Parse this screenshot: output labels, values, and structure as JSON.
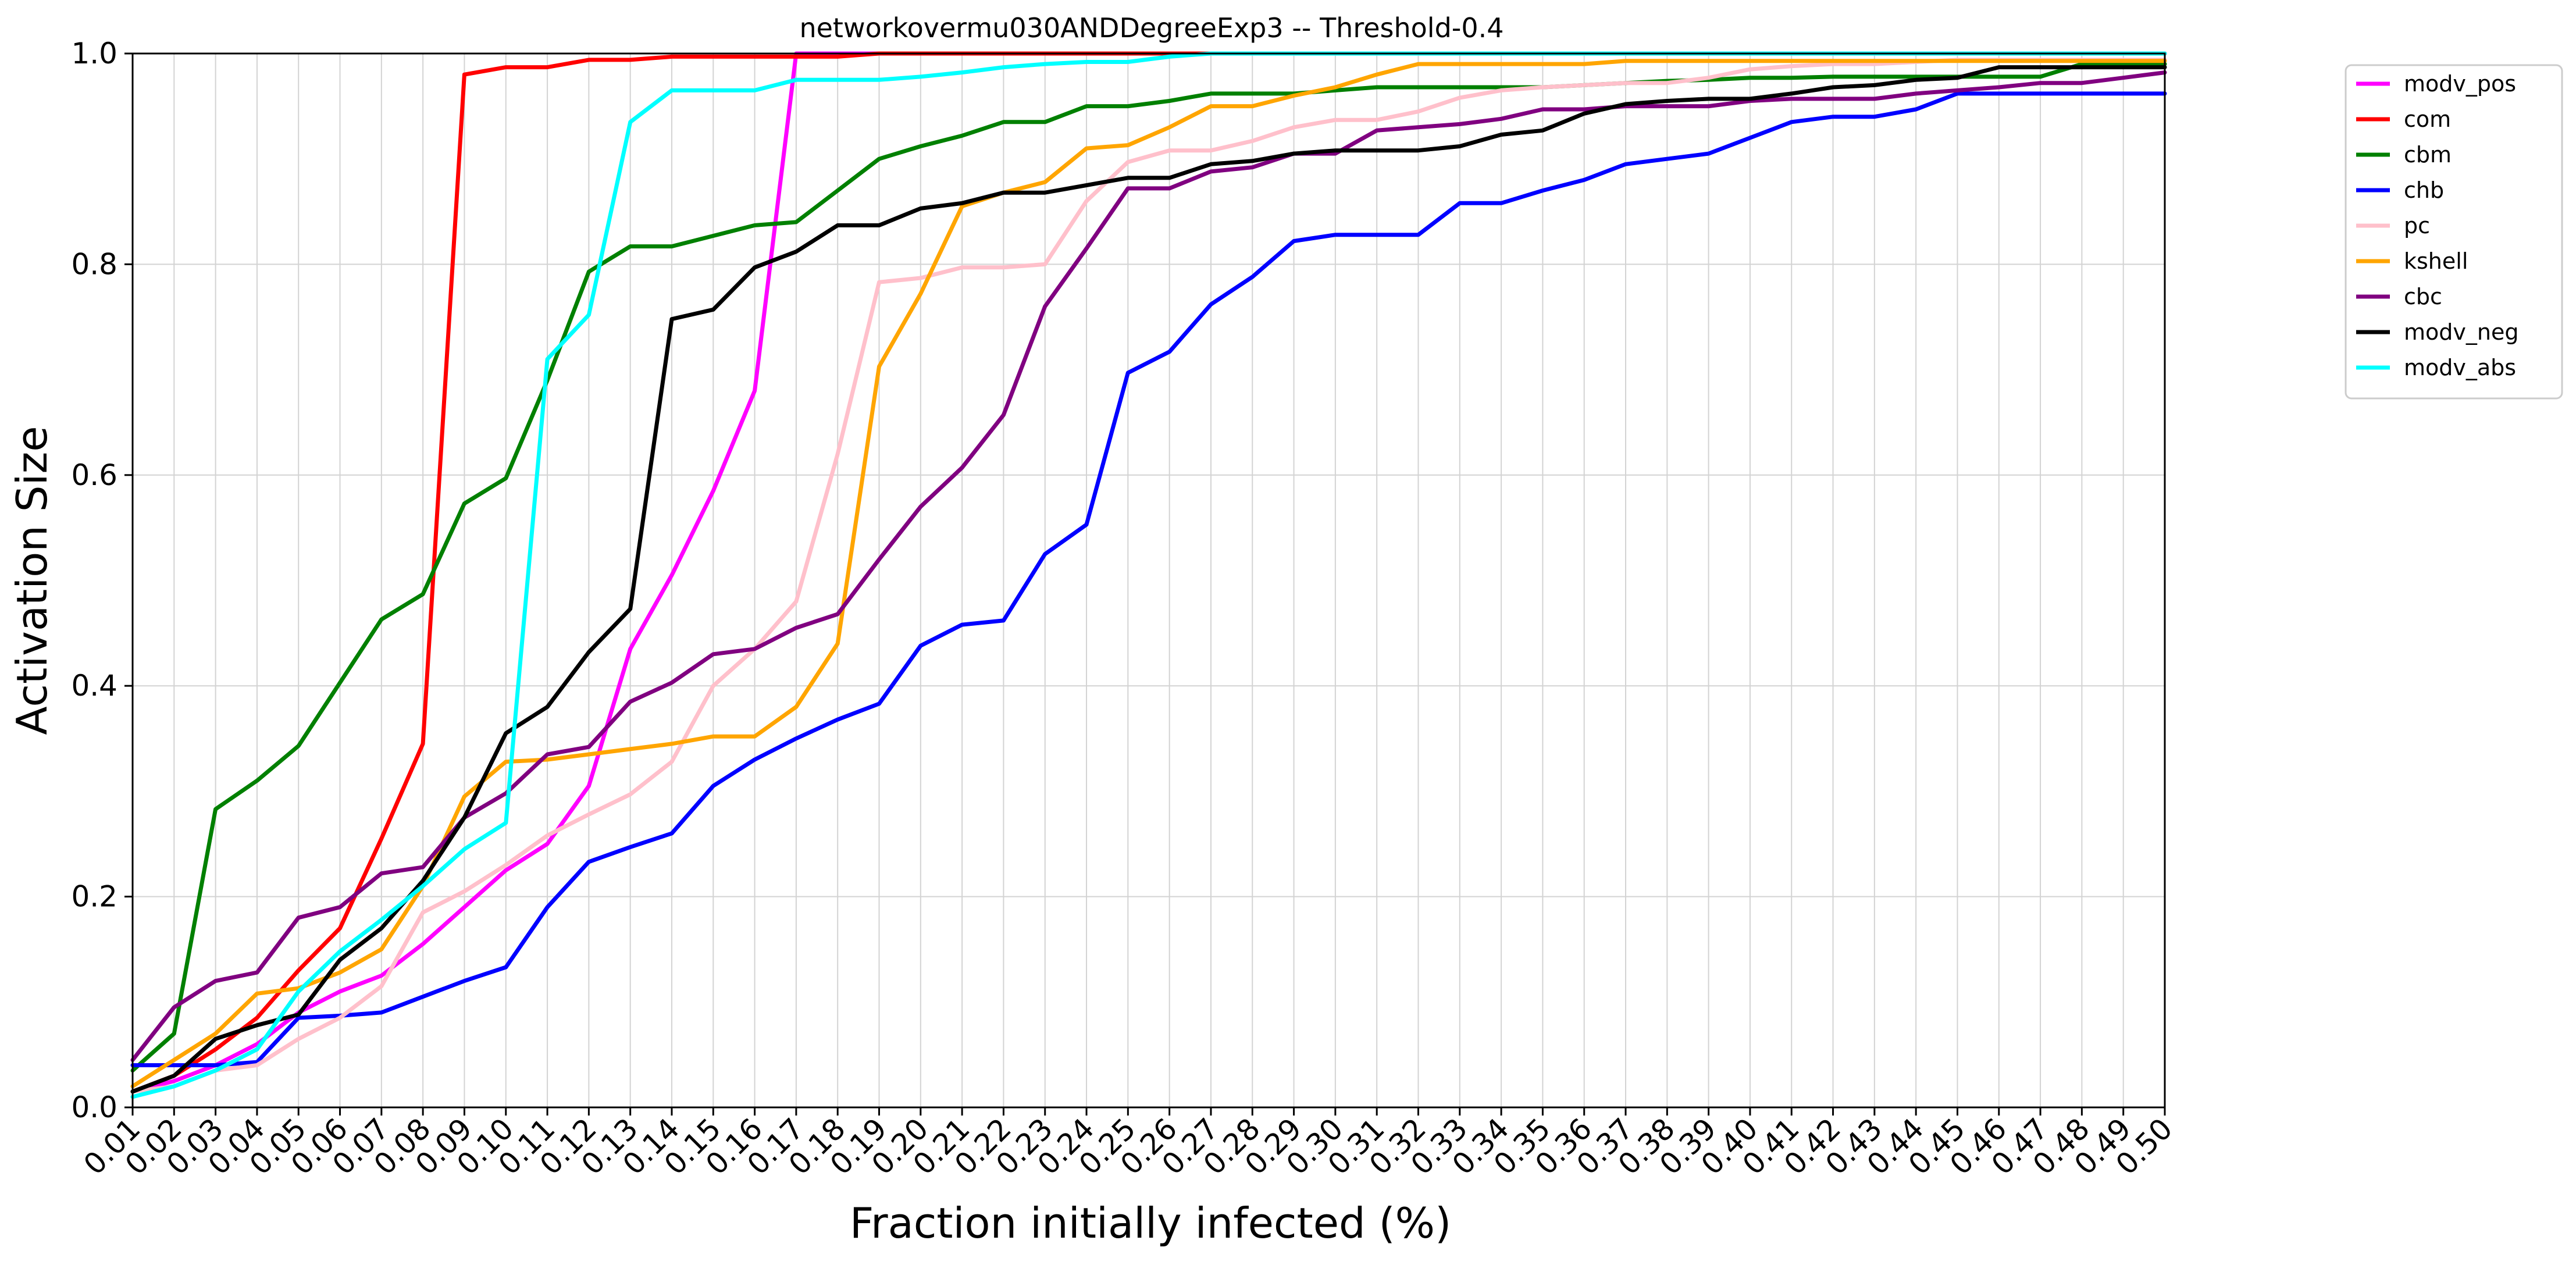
{
  "chart_data": {
    "type": "line",
    "title": "networkovermu030ANDDegreeExp3 -- Threshold-0.4",
    "xlabel": "Fraction initially infected (%)",
    "ylabel": "Activation Size",
    "ylim": [
      0,
      1.0
    ],
    "y_ticks": [
      "0.0",
      "0.2",
      "0.4",
      "0.6",
      "0.8",
      "1.0"
    ],
    "grid": true,
    "legend_position": "outside-top-right",
    "x": [
      "0.01",
      "0.02",
      "0.03",
      "0.04",
      "0.05",
      "0.06",
      "0.07",
      "0.08",
      "0.09",
      "0.10",
      "0.11",
      "0.12",
      "0.13",
      "0.14",
      "0.15",
      "0.16",
      "0.17",
      "0.18",
      "0.19",
      "0.20",
      "0.21",
      "0.22",
      "0.23",
      "0.24",
      "0.25",
      "0.26",
      "0.27",
      "0.28",
      "0.29",
      "0.30",
      "0.31",
      "0.32",
      "0.33",
      "0.34",
      "0.35",
      "0.36",
      "0.37",
      "0.38",
      "0.39",
      "0.40",
      "0.41",
      "0.42",
      "0.43",
      "0.44",
      "0.45",
      "0.46",
      "0.47",
      "0.48",
      "0.49",
      "0.50"
    ],
    "series": [
      {
        "name": "modv_pos",
        "color": "#ff00ff",
        "values": [
          0.015,
          0.025,
          0.04,
          0.06,
          0.09,
          0.11,
          0.125,
          0.155,
          0.19,
          0.225,
          0.25,
          0.305,
          0.435,
          0.505,
          0.585,
          0.68,
          1.0,
          1.0,
          1.0,
          1.0,
          1.0,
          1.0,
          1.0,
          1.0,
          1.0,
          1.0,
          1.0,
          1.0,
          1.0,
          1.0,
          1.0,
          1.0,
          1.0,
          1.0,
          1.0,
          1.0,
          1.0,
          1.0,
          1.0,
          1.0,
          1.0,
          1.0,
          1.0,
          1.0,
          1.0,
          1.0,
          1.0,
          1.0,
          1.0,
          1.0
        ]
      },
      {
        "name": "com",
        "color": "#ff0000",
        "values": [
          0.015,
          0.03,
          0.055,
          0.085,
          0.13,
          0.17,
          0.255,
          0.345,
          0.98,
          0.987,
          0.987,
          0.994,
          0.994,
          0.997,
          0.997,
          0.997,
          0.997,
          0.997,
          1.0,
          1.0,
          1.0,
          1.0,
          1.0,
          1.0,
          1.0,
          1.0,
          1.0,
          1.0,
          1.0,
          1.0,
          1.0,
          1.0,
          1.0,
          1.0,
          1.0,
          1.0,
          1.0,
          1.0,
          1.0,
          1.0,
          1.0,
          1.0,
          1.0,
          1.0,
          1.0,
          1.0,
          1.0,
          1.0,
          1.0,
          1.0
        ]
      },
      {
        "name": "cbm",
        "color": "#008000",
        "values": [
          0.035,
          0.07,
          0.283,
          0.31,
          0.343,
          0.403,
          0.463,
          0.487,
          0.573,
          0.597,
          0.69,
          0.793,
          0.817,
          0.817,
          0.827,
          0.837,
          0.84,
          0.87,
          0.9,
          0.912,
          0.922,
          0.935,
          0.935,
          0.95,
          0.95,
          0.955,
          0.962,
          0.962,
          0.962,
          0.965,
          0.968,
          0.968,
          0.968,
          0.968,
          0.968,
          0.97,
          0.972,
          0.974,
          0.975,
          0.977,
          0.977,
          0.978,
          0.978,
          0.978,
          0.978,
          0.978,
          0.978,
          0.99,
          0.99,
          0.99
        ]
      },
      {
        "name": "chb",
        "color": "#0000ff",
        "values": [
          0.04,
          0.04,
          0.04,
          0.043,
          0.085,
          0.087,
          0.09,
          0.105,
          0.12,
          0.133,
          0.19,
          0.233,
          0.247,
          0.26,
          0.305,
          0.33,
          0.35,
          0.368,
          0.383,
          0.438,
          0.458,
          0.462,
          0.525,
          0.553,
          0.697,
          0.717,
          0.762,
          0.788,
          0.822,
          0.828,
          0.828,
          0.828,
          0.858,
          0.858,
          0.87,
          0.88,
          0.895,
          0.9,
          0.905,
          0.92,
          0.935,
          0.94,
          0.94,
          0.947,
          0.962,
          0.962,
          0.962,
          0.962,
          0.962,
          0.962
        ]
      },
      {
        "name": "pc",
        "color": "#ffc0cb",
        "values": [
          0.015,
          0.02,
          0.035,
          0.04,
          0.065,
          0.085,
          0.115,
          0.185,
          0.205,
          0.23,
          0.258,
          0.278,
          0.297,
          0.328,
          0.4,
          0.435,
          0.48,
          0.62,
          0.783,
          0.787,
          0.797,
          0.797,
          0.8,
          0.86,
          0.897,
          0.908,
          0.908,
          0.917,
          0.93,
          0.937,
          0.937,
          0.945,
          0.958,
          0.965,
          0.968,
          0.97,
          0.972,
          0.972,
          0.977,
          0.985,
          0.988,
          0.99,
          0.99,
          0.992,
          0.994,
          0.994,
          0.994,
          0.994,
          0.994,
          0.994
        ]
      },
      {
        "name": "kshell",
        "color": "#ffa500",
        "values": [
          0.02,
          0.045,
          0.07,
          0.108,
          0.113,
          0.128,
          0.15,
          0.21,
          0.295,
          0.328,
          0.33,
          0.335,
          0.34,
          0.345,
          0.352,
          0.352,
          0.38,
          0.44,
          0.703,
          0.772,
          0.855,
          0.868,
          0.878,
          0.91,
          0.913,
          0.93,
          0.95,
          0.95,
          0.96,
          0.968,
          0.98,
          0.99,
          0.99,
          0.99,
          0.99,
          0.99,
          0.993,
          0.993,
          0.993,
          0.993,
          0.993,
          0.993,
          0.993,
          0.993,
          0.993,
          0.993,
          0.993,
          0.993,
          0.993,
          0.993
        ]
      },
      {
        "name": "cbc",
        "color": "#800080",
        "values": [
          0.045,
          0.095,
          0.12,
          0.128,
          0.18,
          0.19,
          0.222,
          0.228,
          0.275,
          0.298,
          0.335,
          0.342,
          0.385,
          0.403,
          0.43,
          0.435,
          0.455,
          0.468,
          0.52,
          0.57,
          0.607,
          0.657,
          0.76,
          0.815,
          0.872,
          0.872,
          0.888,
          0.892,
          0.905,
          0.905,
          0.927,
          0.93,
          0.933,
          0.938,
          0.947,
          0.947,
          0.95,
          0.95,
          0.95,
          0.955,
          0.957,
          0.957,
          0.957,
          0.962,
          0.965,
          0.968,
          0.972,
          0.972,
          0.977,
          0.982
        ]
      },
      {
        "name": "modv_neg",
        "color": "#000000",
        "values": [
          0.015,
          0.03,
          0.065,
          0.078,
          0.088,
          0.14,
          0.17,
          0.215,
          0.275,
          0.355,
          0.38,
          0.432,
          0.473,
          0.748,
          0.757,
          0.797,
          0.812,
          0.837,
          0.837,
          0.853,
          0.858,
          0.868,
          0.868,
          0.875,
          0.882,
          0.882,
          0.895,
          0.898,
          0.905,
          0.908,
          0.908,
          0.908,
          0.912,
          0.923,
          0.927,
          0.943,
          0.952,
          0.955,
          0.957,
          0.957,
          0.962,
          0.968,
          0.97,
          0.975,
          0.977,
          0.987,
          0.987,
          0.987,
          0.987,
          0.987
        ]
      },
      {
        "name": "modv_abs",
        "color": "#00ffff",
        "values": [
          0.01,
          0.02,
          0.035,
          0.055,
          0.11,
          0.148,
          0.178,
          0.21,
          0.245,
          0.27,
          0.71,
          0.752,
          0.935,
          0.965,
          0.965,
          0.965,
          0.975,
          0.975,
          0.975,
          0.978,
          0.982,
          0.987,
          0.99,
          0.992,
          0.992,
          0.997,
          1.0,
          1.0,
          1.0,
          1.0,
          1.0,
          1.0,
          1.0,
          1.0,
          1.0,
          1.0,
          1.0,
          1.0,
          1.0,
          1.0,
          1.0,
          1.0,
          1.0,
          1.0,
          1.0,
          1.0,
          1.0,
          1.0,
          1.0,
          1.0
        ]
      }
    ]
  }
}
